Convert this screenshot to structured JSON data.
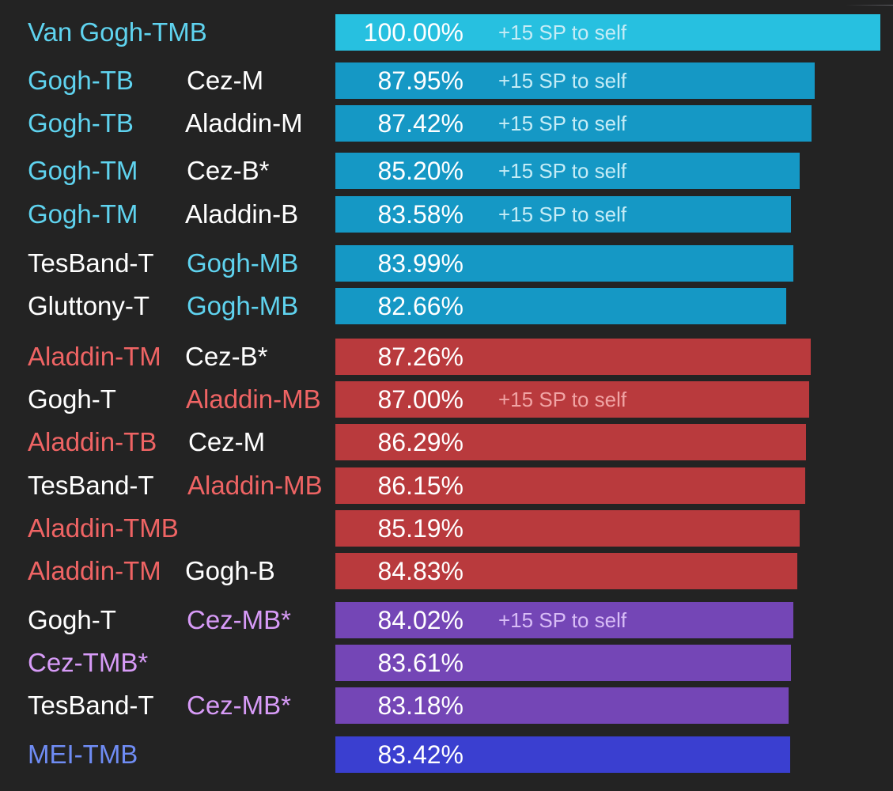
{
  "colors": {
    "background": "#232323",
    "label_white": "#ffffff",
    "teal_label": "#5fd3ef",
    "red_label": "#ef6464",
    "purple_label": "#d79bf7",
    "blue_label": "#6f8cf4",
    "note_teal": "#c5ecf6",
    "note_red": "#f0a4a4",
    "note_purple": "#d8bdf6"
  },
  "chart_data": {
    "type": "bar",
    "orientation": "horizontal",
    "title": "",
    "xlabel": "",
    "ylabel": "",
    "xlim": [
      0,
      100
    ],
    "value_format": "percent_2dp",
    "rows": [
      {
        "label1": "Van Gogh-TMB",
        "label1_color": "#5fd3ef",
        "label2": "",
        "label2_color": "#ffffff",
        "label2_offset": 0,
        "value": 100.0,
        "value_text": "100.00%",
        "note": "+15 SP to self",
        "note_color": "#c5ecf6",
        "bar_color": "#27c0e0"
      },
      {
        "label1": "Gogh-TB",
        "label1_color": "#5fd3ef",
        "label2": "Cez-M",
        "label2_color": "#ffffff",
        "label2_offset": 0,
        "value": 87.95,
        "value_text": "87.95%",
        "note": "+15 SP to self",
        "note_color": "#c5ecf6",
        "bar_color": "#1598c5"
      },
      {
        "label1": "Gogh-TB",
        "label1_color": "#5fd3ef",
        "label2": "Aladdin-M",
        "label2_color": "#ffffff",
        "label2_offset": -2,
        "value": 87.42,
        "value_text": "87.42%",
        "note": "+15 SP to self",
        "note_color": "#c5ecf6",
        "bar_color": "#1598c5"
      },
      {
        "label1": "Gogh-TM",
        "label1_color": "#5fd3ef",
        "label2": "Cez-B*",
        "label2_color": "#ffffff",
        "label2_offset": 0,
        "value": 85.2,
        "value_text": "85.20%",
        "note": "+15 SP to self",
        "note_color": "#c5ecf6",
        "bar_color": "#1598c5"
      },
      {
        "label1": "Gogh-TM",
        "label1_color": "#5fd3ef",
        "label2": "Aladdin-B",
        "label2_color": "#ffffff",
        "label2_offset": -2,
        "value": 83.58,
        "value_text": "83.58%",
        "note": "+15 SP to self",
        "note_color": "#c5ecf6",
        "bar_color": "#1598c5"
      },
      {
        "label1": "TesBand-T",
        "label1_color": "#ffffff",
        "label2": "Gogh-MB",
        "label2_color": "#5fd3ef",
        "label2_offset": 0,
        "value": 83.99,
        "value_text": "83.99%",
        "note": "",
        "note_color": "#c5ecf6",
        "bar_color": "#1598c5"
      },
      {
        "label1": "Gluttony-T",
        "label1_color": "#ffffff",
        "label2": "Gogh-MB",
        "label2_color": "#5fd3ef",
        "label2_offset": 0,
        "value": 82.66,
        "value_text": "82.66%",
        "note": "",
        "note_color": "#c5ecf6",
        "bar_color": "#1598c5"
      },
      {
        "label1": "Aladdin-TM",
        "label1_color": "#ef6464",
        "label2": "Cez-B*",
        "label2_color": "#ffffff",
        "label2_offset": -2,
        "value": 87.26,
        "value_text": "87.26%",
        "note": "",
        "note_color": "#f0a4a4",
        "bar_color": "#b93a3d"
      },
      {
        "label1": "Gogh-T",
        "label1_color": "#ffffff",
        "label2": "Aladdin-MB",
        "label2_color": "#ef6464",
        "label2_offset": -1,
        "value": 87.0,
        "value_text": "87.00%",
        "note": "+15 SP to self",
        "note_color": "#f0a4a4",
        "bar_color": "#b93a3d"
      },
      {
        "label1": "Aladdin-TB",
        "label1_color": "#ef6464",
        "label2": "Cez-M",
        "label2_color": "#ffffff",
        "label2_offset": 2,
        "value": 86.29,
        "value_text": "86.29%",
        "note": "",
        "note_color": "#f0a4a4",
        "bar_color": "#b93a3d"
      },
      {
        "label1": "TesBand-T",
        "label1_color": "#ffffff",
        "label2": "Aladdin-MB",
        "label2_color": "#ef6464",
        "label2_offset": 1,
        "value": 86.15,
        "value_text": "86.15%",
        "note": "",
        "note_color": "#f0a4a4",
        "bar_color": "#b93a3d"
      },
      {
        "label1": "Aladdin-TMB",
        "label1_color": "#ef6464",
        "label2": "",
        "label2_color": "#ffffff",
        "label2_offset": 0,
        "value": 85.19,
        "value_text": "85.19%",
        "note": "",
        "note_color": "#f0a4a4",
        "bar_color": "#b93a3d"
      },
      {
        "label1": "Aladdin-TM",
        "label1_color": "#ef6464",
        "label2": "Gogh-B",
        "label2_color": "#ffffff",
        "label2_offset": -2,
        "value": 84.83,
        "value_text": "84.83%",
        "note": "",
        "note_color": "#f0a4a4",
        "bar_color": "#b93a3d"
      },
      {
        "label1": "Gogh-T",
        "label1_color": "#ffffff",
        "label2": "Cez-MB*",
        "label2_color": "#d79bf7",
        "label2_offset": 0,
        "value": 84.02,
        "value_text": "84.02%",
        "note": "+15 SP to self",
        "note_color": "#d8bdf6",
        "bar_color": "#7446b6"
      },
      {
        "label1": "Cez-TMB*",
        "label1_color": "#d79bf7",
        "label2": "",
        "label2_color": "#ffffff",
        "label2_offset": 0,
        "value": 83.61,
        "value_text": "83.61%",
        "note": "",
        "note_color": "#d8bdf6",
        "bar_color": "#7446b6"
      },
      {
        "label1": "TesBand-T",
        "label1_color": "#ffffff",
        "label2": "Cez-MB*",
        "label2_color": "#d79bf7",
        "label2_offset": 0,
        "value": 83.18,
        "value_text": "83.18%",
        "note": "",
        "note_color": "#d8bdf6",
        "bar_color": "#7446b6"
      },
      {
        "label1": "MEI-TMB",
        "label1_color": "#6f8cf4",
        "label2": "",
        "label2_color": "#ffffff",
        "label2_offset": 0,
        "value": 83.42,
        "value_text": "83.42%",
        "note": "",
        "note_color": "#d8bdf6",
        "bar_color": "#3a3fd0"
      }
    ]
  }
}
